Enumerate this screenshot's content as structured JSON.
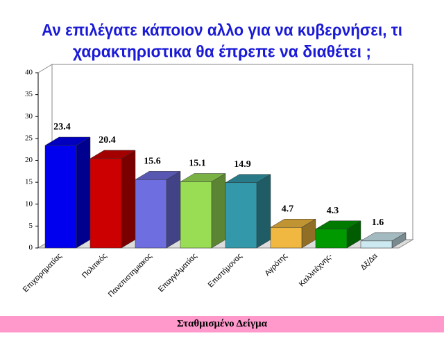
{
  "chart_data": {
    "type": "bar3d",
    "title": [
      "Αν επιλέγατε κάποιον αλλο για να κυβερνήσει, τι",
      "χαρακτηριστικα θα έπρεπε να διαθέτει ;"
    ],
    "categories": [
      "Επιχειρηματίας",
      "Πολιτικός",
      "Πανεπιστημιακος",
      "Επαγγελματίας",
      "Επιστήμονας",
      "Αγρότης",
      "Καλλιτέχνης-",
      "Δξ/Δα"
    ],
    "values": [
      23.4,
      20.4,
      15.6,
      15.1,
      14.9,
      4.7,
      4.3,
      1.6
    ],
    "colors": [
      "#0000ee",
      "#cc0000",
      "#6e6ee0",
      "#99dd55",
      "#3399aa",
      "#f0b840",
      "#009900",
      "#cce8f0"
    ],
    "ylim": [
      0,
      40
    ],
    "yticks": [
      0,
      5,
      10,
      15,
      20,
      25,
      30,
      35,
      40
    ],
    "grid": false
  },
  "footer": "Σταθμισμένο Δείγμα"
}
